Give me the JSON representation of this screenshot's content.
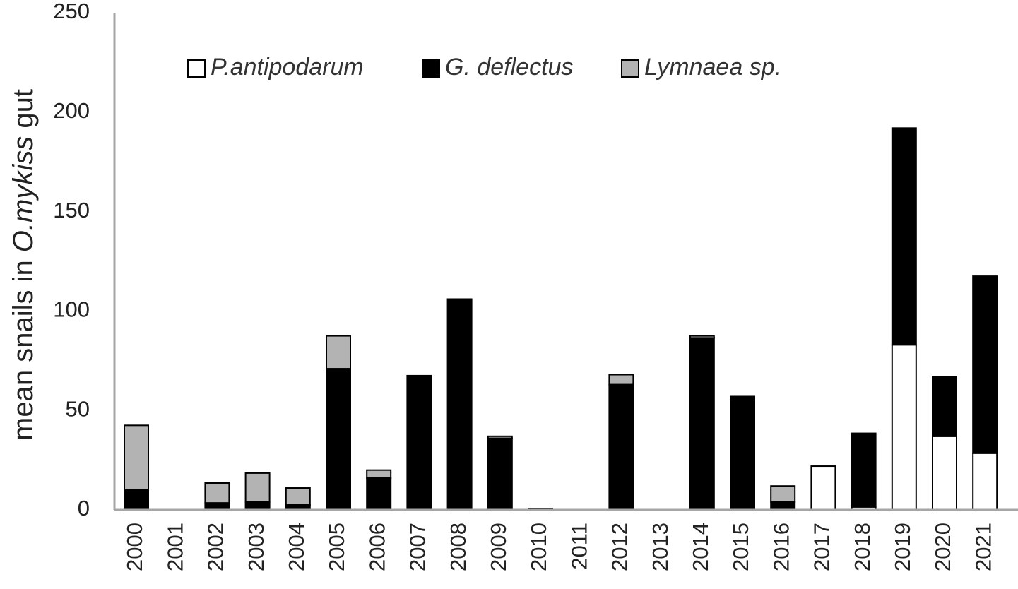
{
  "chart_data": {
    "type": "bar",
    "stacked": true,
    "title": "",
    "xlabel": "",
    "ylabel_parts": [
      "mean snails in ",
      "O.mykiss",
      " gut"
    ],
    "ylim": [
      0,
      250
    ],
    "yticks": [
      0,
      50,
      100,
      150,
      200,
      250
    ],
    "grid": false,
    "legend_position": "top-left",
    "categories": [
      "2000",
      "2001",
      "2002",
      "2003",
      "2004",
      "2005",
      "2006",
      "2007",
      "2008",
      "2009",
      "2010",
      "2011",
      "2012",
      "2013",
      "2014",
      "2015",
      "2016",
      "2017",
      "2018",
      "2019",
      "2020",
      "2021"
    ],
    "series": [
      {
        "name": "P.antipodarum",
        "color": "#ffffff",
        "values": [
          0,
          0,
          0,
          0,
          0,
          0,
          0,
          0,
          0,
          0,
          0,
          0,
          0,
          0,
          0,
          0,
          0,
          22,
          1.5,
          83,
          37,
          28.5
        ]
      },
      {
        "name": "G. deflectus",
        "color": "#000000",
        "values": [
          10,
          0,
          3.5,
          4,
          2.5,
          71,
          16,
          67.5,
          106,
          36,
          0.5,
          0,
          63,
          0,
          86.5,
          57,
          4,
          0,
          37,
          109,
          30,
          89
        ]
      },
      {
        "name": "Lymnaea sp.",
        "color": "#b3b3b3",
        "values": [
          32.5,
          0,
          10,
          14.5,
          8.5,
          16.5,
          4,
          0,
          0,
          1,
          0,
          0,
          5,
          0,
          1,
          0,
          8,
          0,
          0,
          0,
          0,
          0
        ]
      }
    ]
  }
}
